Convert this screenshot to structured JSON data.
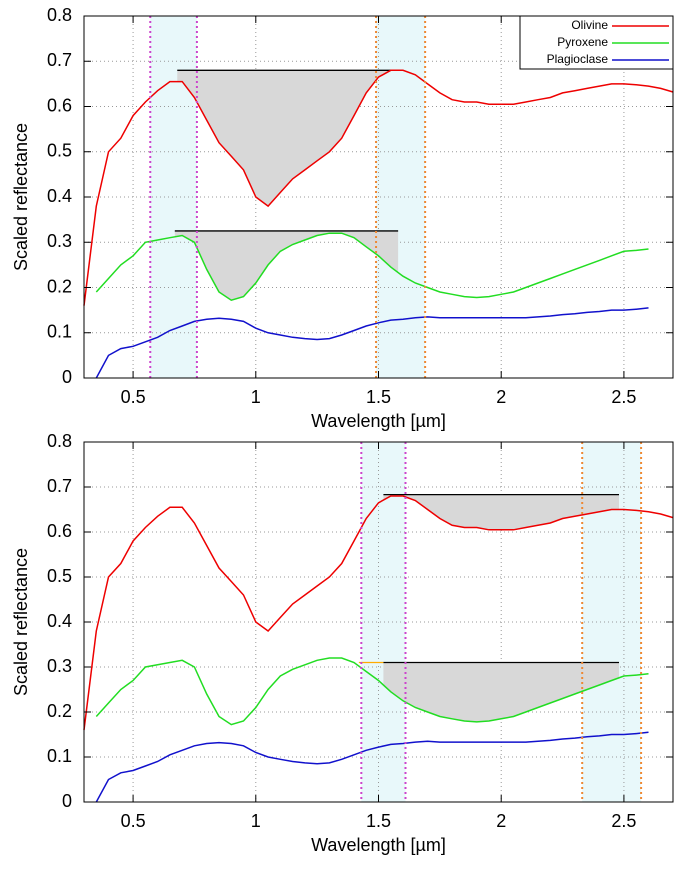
{
  "chart_data": [
    {
      "type": "line",
      "xlabel": "Wavelength [µm]",
      "ylabel": "Scaled reflectance",
      "xlim": [
        0.3,
        2.7
      ],
      "ylim": [
        0,
        0.8
      ],
      "xticks": [
        0.5,
        1,
        1.5,
        2,
        2.5
      ],
      "yticks": [
        0,
        0.1,
        0.2,
        0.3,
        0.4,
        0.5,
        0.6,
        0.7,
        0.8
      ],
      "grid": true,
      "legend": "upper right",
      "x": [
        0.3,
        0.35,
        0.4,
        0.45,
        0.5,
        0.55,
        0.6,
        0.65,
        0.7,
        0.75,
        0.8,
        0.85,
        0.9,
        0.95,
        1.0,
        1.05,
        1.1,
        1.15,
        1.2,
        1.25,
        1.3,
        1.35,
        1.4,
        1.45,
        1.5,
        1.55,
        1.6,
        1.65,
        1.7,
        1.75,
        1.8,
        1.85,
        1.9,
        1.95,
        2.0,
        2.05,
        2.1,
        2.15,
        2.2,
        2.25,
        2.3,
        2.35,
        2.4,
        2.45,
        2.5,
        2.55,
        2.6,
        2.65,
        2.7
      ],
      "series": [
        {
          "name": "Olivine",
          "color": "#ee0000",
          "values": [
            0.16,
            0.38,
            0.5,
            0.53,
            0.58,
            0.61,
            0.635,
            0.655,
            0.655,
            0.62,
            0.57,
            0.52,
            0.49,
            0.46,
            0.4,
            0.38,
            0.41,
            0.44,
            0.46,
            0.48,
            0.5,
            0.53,
            0.58,
            0.63,
            0.665,
            0.68,
            0.68,
            0.67,
            0.65,
            0.63,
            0.615,
            0.61,
            0.61,
            0.605,
            0.605,
            0.605,
            0.61,
            0.615,
            0.62,
            0.63,
            0.635,
            0.64,
            0.645,
            0.65,
            0.65,
            0.648,
            0.645,
            0.64,
            0.632
          ]
        },
        {
          "name": "Pyroxene",
          "color": "#22dd22",
          "values": [
            null,
            0.19,
            0.22,
            0.25,
            0.27,
            0.3,
            0.305,
            0.31,
            0.315,
            0.3,
            0.24,
            0.19,
            0.172,
            0.18,
            0.21,
            0.25,
            0.28,
            0.295,
            0.305,
            0.315,
            0.32,
            0.32,
            0.31,
            0.29,
            0.27,
            0.245,
            0.225,
            0.21,
            0.2,
            0.19,
            0.185,
            0.18,
            0.178,
            0.18,
            0.185,
            0.19,
            0.2,
            0.21,
            0.22,
            0.23,
            0.24,
            0.25,
            0.26,
            0.27,
            0.28,
            0.282,
            0.285,
            null,
            null
          ]
        },
        {
          "name": "Plagioclase",
          "color": "#1111cc",
          "values": [
            null,
            0.0,
            0.05,
            0.065,
            0.07,
            0.08,
            0.09,
            0.105,
            0.115,
            0.125,
            0.13,
            0.132,
            0.13,
            0.125,
            0.11,
            0.1,
            0.095,
            0.09,
            0.087,
            0.085,
            0.087,
            0.095,
            0.105,
            0.115,
            0.122,
            0.128,
            0.13,
            0.133,
            0.135,
            0.133,
            0.133,
            0.133,
            0.133,
            0.133,
            0.133,
            0.133,
            0.133,
            0.135,
            0.137,
            0.14,
            0.142,
            0.145,
            0.147,
            0.15,
            0.15,
            0.152,
            0.155,
            null,
            null
          ]
        }
      ],
      "bands": [
        {
          "x": [
            0.57,
            0.76
          ],
          "edge_color": "#cc44cc"
        },
        {
          "x": [
            1.49,
            1.69
          ],
          "edge_color": "#ee8833"
        }
      ],
      "continua": [
        {
          "series": 0,
          "x": [
            0.68,
            1.6
          ],
          "y": 0.68,
          "color": "#000000",
          "fill": true
        },
        {
          "series": 1,
          "x": [
            0.67,
            1.58
          ],
          "y": 0.325,
          "color": "#000000",
          "fill": true
        }
      ]
    },
    {
      "type": "line",
      "xlabel": "Wavelength [µm]",
      "ylabel": "Scaled reflectance",
      "xlim": [
        0.3,
        2.7
      ],
      "ylim": [
        0,
        0.8
      ],
      "xticks": [
        0.5,
        1,
        1.5,
        2,
        2.5
      ],
      "yticks": [
        0,
        0.1,
        0.2,
        0.3,
        0.4,
        0.5,
        0.6,
        0.7,
        0.8
      ],
      "grid": true,
      "x": [
        0.3,
        0.35,
        0.4,
        0.45,
        0.5,
        0.55,
        0.6,
        0.65,
        0.7,
        0.75,
        0.8,
        0.85,
        0.9,
        0.95,
        1.0,
        1.05,
        1.1,
        1.15,
        1.2,
        1.25,
        1.3,
        1.35,
        1.4,
        1.45,
        1.5,
        1.55,
        1.6,
        1.65,
        1.7,
        1.75,
        1.8,
        1.85,
        1.9,
        1.95,
        2.0,
        2.05,
        2.1,
        2.15,
        2.2,
        2.25,
        2.3,
        2.35,
        2.4,
        2.45,
        2.5,
        2.55,
        2.6,
        2.65,
        2.7
      ],
      "series": [
        {
          "color": "#ee0000",
          "values": [
            0.16,
            0.38,
            0.5,
            0.53,
            0.58,
            0.61,
            0.635,
            0.655,
            0.655,
            0.62,
            0.57,
            0.52,
            0.49,
            0.46,
            0.4,
            0.38,
            0.41,
            0.44,
            0.46,
            0.48,
            0.5,
            0.53,
            0.58,
            0.63,
            0.665,
            0.68,
            0.68,
            0.67,
            0.65,
            0.63,
            0.615,
            0.61,
            0.61,
            0.605,
            0.605,
            0.605,
            0.61,
            0.615,
            0.62,
            0.63,
            0.635,
            0.64,
            0.645,
            0.65,
            0.65,
            0.648,
            0.645,
            0.64,
            0.632
          ]
        },
        {
          "color": "#22dd22",
          "values": [
            null,
            0.19,
            0.22,
            0.25,
            0.27,
            0.3,
            0.305,
            0.31,
            0.315,
            0.3,
            0.24,
            0.19,
            0.172,
            0.18,
            0.21,
            0.25,
            0.28,
            0.295,
            0.305,
            0.315,
            0.32,
            0.32,
            0.31,
            0.29,
            0.27,
            0.245,
            0.225,
            0.21,
            0.2,
            0.19,
            0.185,
            0.18,
            0.178,
            0.18,
            0.185,
            0.19,
            0.2,
            0.21,
            0.22,
            0.23,
            0.24,
            0.25,
            0.26,
            0.27,
            0.28,
            0.282,
            0.285,
            null,
            null
          ]
        },
        {
          "color": "#1111cc",
          "values": [
            null,
            0.0,
            0.05,
            0.065,
            0.07,
            0.08,
            0.09,
            0.105,
            0.115,
            0.125,
            0.13,
            0.132,
            0.13,
            0.125,
            0.11,
            0.1,
            0.095,
            0.09,
            0.087,
            0.085,
            0.087,
            0.095,
            0.105,
            0.115,
            0.122,
            0.128,
            0.13,
            0.133,
            0.135,
            0.133,
            0.133,
            0.133,
            0.133,
            0.133,
            0.133,
            0.133,
            0.133,
            0.135,
            0.137,
            0.14,
            0.142,
            0.145,
            0.147,
            0.15,
            0.15,
            0.152,
            0.155,
            null,
            null
          ]
        }
      ],
      "bands": [
        {
          "x": [
            1.43,
            1.61
          ],
          "edge_color": "#cc44cc"
        },
        {
          "x": [
            2.33,
            2.57
          ],
          "edge_color": "#ee8833"
        }
      ],
      "continua": [
        {
          "series": 0,
          "x": [
            1.52,
            2.48
          ],
          "y": 0.683,
          "color": "#000000",
          "fill": true
        },
        {
          "series": 1,
          "x": [
            1.52,
            2.48
          ],
          "y": 0.31,
          "color": "#000000",
          "fill": true
        },
        {
          "series": 1,
          "x": [
            1.42,
            1.52
          ],
          "y": 0.31,
          "color": "#ffaa00",
          "fill": false
        }
      ]
    }
  ]
}
